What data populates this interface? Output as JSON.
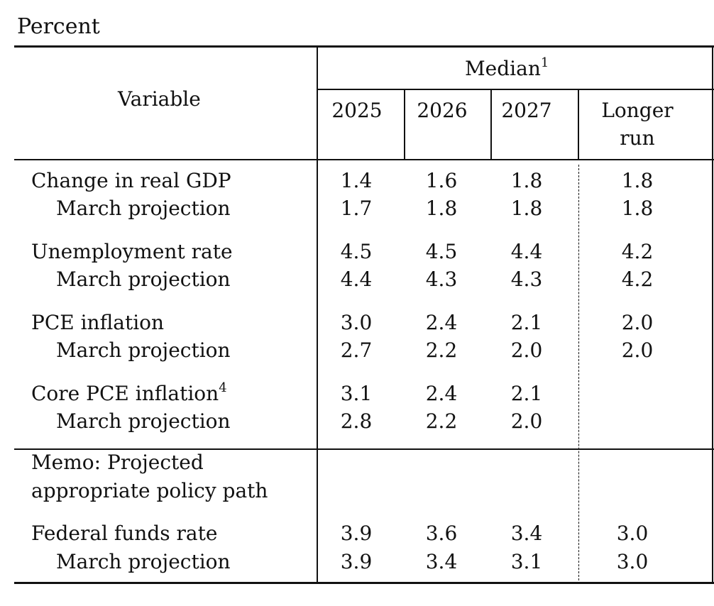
{
  "unit_label": "Percent",
  "header": {
    "variable": "Variable",
    "median": "Median",
    "median_note": "1",
    "years": [
      "2025",
      "2026",
      "2027"
    ],
    "longer_run_line1": "Longer",
    "longer_run_line2": "run"
  },
  "rows": [
    {
      "label": "Change in real GDP",
      "values": [
        "1.4",
        "1.6",
        "1.8",
        "1.8"
      ]
    },
    {
      "label": "March projection",
      "values": [
        "1.7",
        "1.8",
        "1.8",
        "1.8"
      ]
    },
    {
      "label": "Unemployment rate",
      "values": [
        "4.5",
        "4.5",
        "4.4",
        "4.2"
      ]
    },
    {
      "label": "March projection",
      "values": [
        "4.4",
        "4.3",
        "4.3",
        "4.2"
      ]
    },
    {
      "label": "PCE inflation",
      "values": [
        "3.0",
        "2.4",
        "2.1",
        "2.0"
      ]
    },
    {
      "label": "March projection",
      "values": [
        "2.7",
        "2.2",
        "2.0",
        "2.0"
      ]
    },
    {
      "label": "Core PCE inflation",
      "note": "4",
      "values": [
        "3.1",
        "2.4",
        "2.1",
        ""
      ]
    },
    {
      "label": "March projection",
      "values": [
        "2.8",
        "2.2",
        "2.0",
        ""
      ]
    }
  ],
  "memo": {
    "line1": "Memo: Projected",
    "line2": "appropriate policy path"
  },
  "memo_rows": [
    {
      "label": "Federal funds rate",
      "values": [
        "3.9",
        "3.6",
        "3.4",
        "3.0"
      ]
    },
    {
      "label": "March projection",
      "values": [
        "3.9",
        "3.4",
        "3.1",
        "3.0"
      ]
    }
  ]
}
